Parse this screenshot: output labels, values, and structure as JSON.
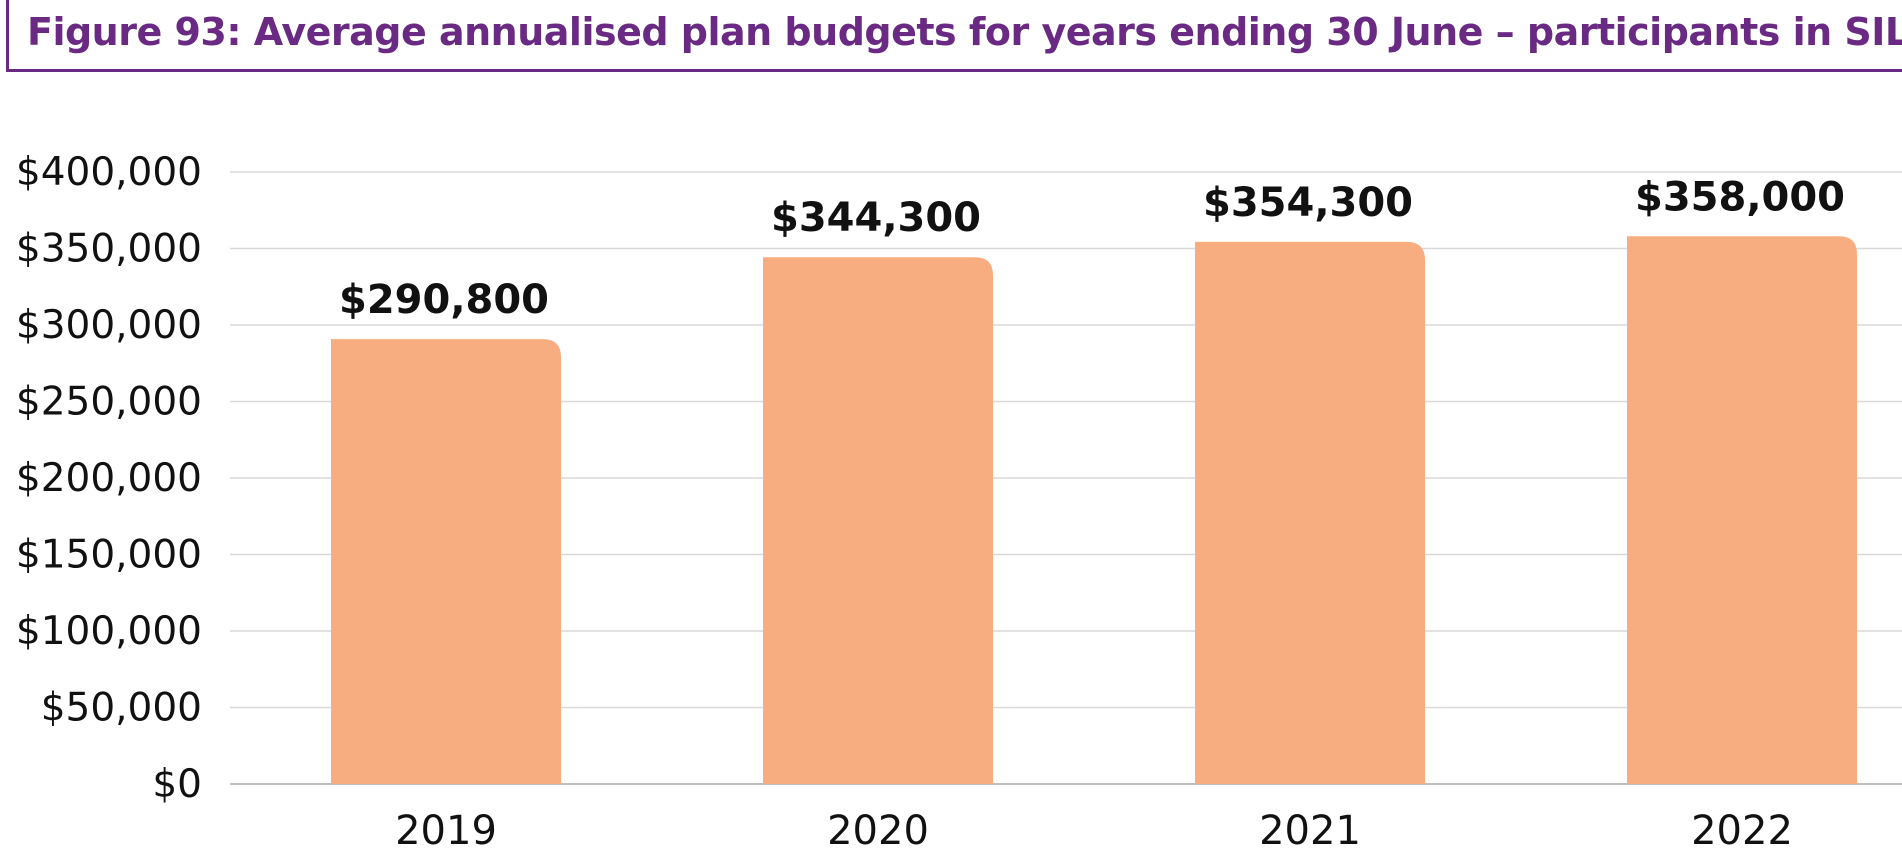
{
  "figure": {
    "title": "Figure 93: Average annualised plan budgets for years ending 30 June – participants in SIL"
  },
  "colors": {
    "title": "#6a2a83",
    "bar": "#f8ad81",
    "grid": "#d9d9d9",
    "axis": "#bfbfbf",
    "text": "#111111"
  },
  "chart_data": {
    "type": "bar",
    "title": "",
    "xlabel": "",
    "ylabel": "",
    "categories": [
      "2019",
      "2020",
      "2021",
      "2022"
    ],
    "values": [
      290800,
      344300,
      354300,
      358000
    ],
    "data_labels": [
      "$290,800",
      "$344,300",
      "$354,300",
      "$358,000"
    ],
    "ylim": [
      0,
      400000
    ],
    "y_ticks": [
      0,
      50000,
      100000,
      150000,
      200000,
      250000,
      300000,
      350000,
      400000
    ],
    "y_tick_labels": [
      "$0",
      "$50,000",
      "$100,000",
      "$150,000",
      "$200,000",
      "$250,000",
      "$300,000",
      "$350,000",
      "$400,000"
    ],
    "grid": true,
    "legend": "none"
  }
}
